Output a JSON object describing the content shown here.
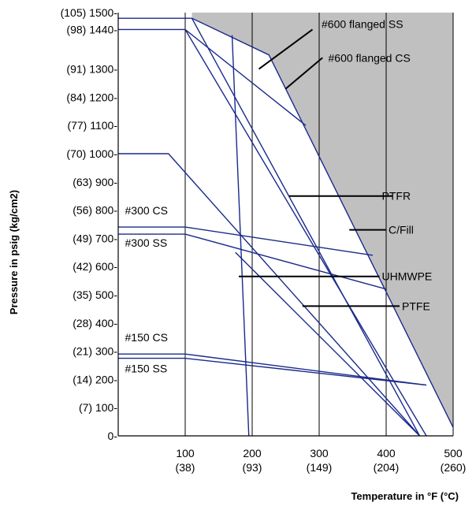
{
  "chart_data": {
    "type": "line",
    "title": "",
    "xlabel": "Temperature in °F (°C)",
    "ylabel": "Pressure in psig (kg/cm2)",
    "xlim": [
      0,
      500
    ],
    "ylim": [
      0,
      1500
    ],
    "grid": true,
    "x_ticks": [
      {
        "v": 100,
        "line1": "100",
        "line2": "(38)"
      },
      {
        "v": 200,
        "line1": "200",
        "line2": "(93)"
      },
      {
        "v": 300,
        "line1": "300",
        "line2": "(149)"
      },
      {
        "v": 400,
        "line1": "400",
        "line2": "(204)"
      },
      {
        "v": 500,
        "line1": "500",
        "line2": "(260)"
      }
    ],
    "y_ticks": [
      {
        "v": 1500,
        "label": "(105) 1500-"
      },
      {
        "v": 1440,
        "label": "(98) 1440-"
      },
      {
        "v": 1300,
        "label": "(91) 1300-"
      },
      {
        "v": 1200,
        "label": "(84) 1200-"
      },
      {
        "v": 1100,
        "label": "(77) 1100-"
      },
      {
        "v": 1000,
        "label": "(70) 1000-"
      },
      {
        "v": 900,
        "label": "(63) 900-"
      },
      {
        "v": 800,
        "label": "(56) 800-"
      },
      {
        "v": 700,
        "label": "(49) 700-"
      },
      {
        "v": 600,
        "label": "(42) 600-"
      },
      {
        "v": 500,
        "label": "(35) 500-"
      },
      {
        "v": 400,
        "label": "(28) 400-"
      },
      {
        "v": 300,
        "label": "(21) 300-"
      },
      {
        "v": 200,
        "label": "(14) 200-"
      },
      {
        "v": 100,
        "label": "(7) 100-"
      },
      {
        "v": 0,
        "label": "0-"
      }
    ],
    "shaded_region_color": "#c0c0c0",
    "flange_lines": [
      {
        "name": "#600 flanged SS",
        "points": [
          [
            0,
            1440
          ],
          [
            100,
            1440
          ],
          [
            280,
            1100
          ]
        ]
      },
      {
        "name": "#600 flanged CS",
        "points": [
          [
            0,
            1480
          ],
          [
            110,
            1480
          ],
          [
            225,
            1350
          ],
          [
            500,
            30
          ]
        ]
      },
      {
        "name": "#300 CS",
        "points": [
          [
            0,
            740
          ],
          [
            100,
            740
          ],
          [
            380,
            640
          ]
        ]
      },
      {
        "name": "#300 SS",
        "points": [
          [
            0,
            715
          ],
          [
            100,
            715
          ],
          [
            400,
            520
          ]
        ]
      },
      {
        "name": "#150 CS",
        "points": [
          [
            0,
            290
          ],
          [
            100,
            290
          ],
          [
            460,
            180
          ]
        ]
      },
      {
        "name": "#150 SS",
        "points": [
          [
            0,
            275
          ],
          [
            100,
            275
          ],
          [
            460,
            180
          ]
        ]
      }
    ],
    "material_lines": [
      {
        "name": "PTFR",
        "points": [
          [
            110,
            1480
          ],
          [
            450,
            0
          ]
        ]
      },
      {
        "name": "C/Fill",
        "points": [
          [
            100,
            1440
          ],
          [
            460,
            0
          ]
        ]
      },
      {
        "name": "UHMWPE",
        "points": [
          [
            170,
            1420
          ],
          [
            195,
            0
          ]
        ]
      },
      {
        "name": "PTFE",
        "points": [
          [
            0,
            1000
          ],
          [
            75,
            1000
          ],
          [
            450,
            0
          ]
        ]
      },
      {
        "name": "",
        "points": [
          [
            175,
            650
          ],
          [
            450,
            0
          ]
        ]
      }
    ],
    "annotations": [
      {
        "text": "#600 flanged SS",
        "at": [
          300,
          1460
        ],
        "pointer": [
          [
            290,
            1440
          ],
          [
            210,
            1300
          ]
        ]
      },
      {
        "text": "#600 flanged CS",
        "at": [
          310,
          1340
        ],
        "pointer": [
          [
            305,
            1340
          ],
          [
            250,
            1230
          ]
        ]
      },
      {
        "text": "PTFR",
        "at": [
          390,
          850
        ],
        "pointer": [
          [
            410,
            850
          ],
          [
            255,
            850
          ]
        ]
      },
      {
        "text": "C/Fill",
        "at": [
          400,
          730
        ],
        "pointer": [
          [
            400,
            730
          ],
          [
            345,
            730
          ]
        ]
      },
      {
        "text": "UHMWPE",
        "at": [
          390,
          565
        ],
        "pointer": [
          [
            390,
            565
          ],
          [
            180,
            565
          ]
        ]
      },
      {
        "text": "PTFE",
        "at": [
          420,
          460
        ],
        "pointer": [
          [
            420,
            460
          ],
          [
            275,
            460
          ]
        ]
      }
    ],
    "inline_labels": [
      {
        "text": "#300 CS",
        "at": [
          10,
          785
        ]
      },
      {
        "text": "#300 SS",
        "at": [
          10,
          670
        ]
      },
      {
        "text": "#150 CS",
        "at": [
          10,
          335
        ]
      },
      {
        "text": "#150 SS",
        "at": [
          10,
          225
        ]
      }
    ]
  },
  "colors": {
    "line": "#1a2a8c",
    "accent_line": "#2f8f9a",
    "axis": "#000000",
    "grid": "#000000",
    "shade": "#c0c0c0"
  }
}
